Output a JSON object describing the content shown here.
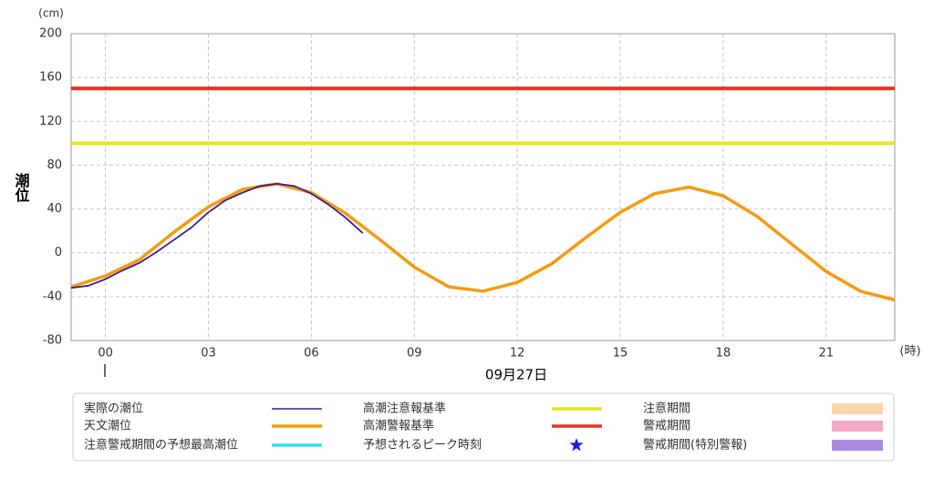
{
  "chart_data": {
    "type": "line",
    "y_unit": "(cm)",
    "x_unit": "(時)",
    "y_label": "潮位",
    "date_label": "09月27日",
    "xlim": [
      -1,
      23
    ],
    "xticks": [
      {
        "value": 0,
        "label": "00"
      },
      {
        "value": 3,
        "label": "03"
      },
      {
        "value": 6,
        "label": "06"
      },
      {
        "value": 9,
        "label": "09"
      },
      12,
      15,
      18,
      21
    ],
    "ylim": [
      -80,
      200
    ],
    "yticks": [
      -80,
      -40,
      0,
      40,
      80,
      120,
      160,
      200
    ],
    "grid": true,
    "series": [
      {
        "name": "実際の潮位",
        "color": "#3b1f8a",
        "x": [
          -1,
          -0.5,
          0,
          0.5,
          1,
          1.5,
          2,
          2.5,
          3,
          3.5,
          4,
          4.5,
          5,
          5.5,
          6,
          6.5,
          7,
          7.5
        ],
        "values": [
          -32,
          -30,
          -24,
          -16,
          -9,
          1,
          12,
          23,
          37,
          48,
          55,
          61,
          63,
          61,
          54,
          44,
          32,
          18
        ]
      },
      {
        "name": "天文潮位",
        "color": "#f39c12",
        "x": [
          -1,
          0,
          1,
          2,
          3,
          4,
          5,
          6,
          7,
          8,
          9,
          10,
          11,
          12,
          13,
          14,
          15,
          16,
          17,
          18,
          19,
          20,
          21,
          22,
          23
        ],
        "values": [
          -31,
          -21,
          -6,
          19,
          42,
          58,
          63,
          55,
          36,
          12,
          -13,
          -31,
          -35,
          -27,
          -10,
          14,
          37,
          54,
          60,
          52,
          33,
          8,
          -17,
          -35,
          -43
        ]
      }
    ],
    "thresholds": [
      {
        "name": "高潮注意報基準",
        "value": 100,
        "color": "#e6e61a"
      },
      {
        "name": "高潮警報基準",
        "value": 150,
        "color": "#e8321e"
      }
    ],
    "legend_extra": [
      {
        "name": "注意警戒期間の予想最高潮位",
        "color": "#33e6e6",
        "symbol": "line"
      },
      {
        "name": "予想されるピーク時刻",
        "color": "#1a1ae6",
        "symbol": "star"
      },
      {
        "name": "注意期間",
        "color": "#fad7a8",
        "symbol": "rect"
      },
      {
        "name": "警戒期間",
        "color": "#f7a8c8",
        "symbol": "rect"
      },
      {
        "name": "警戒期間(特別警報)",
        "color": "#a98ae0",
        "symbol": "rect"
      }
    ]
  }
}
